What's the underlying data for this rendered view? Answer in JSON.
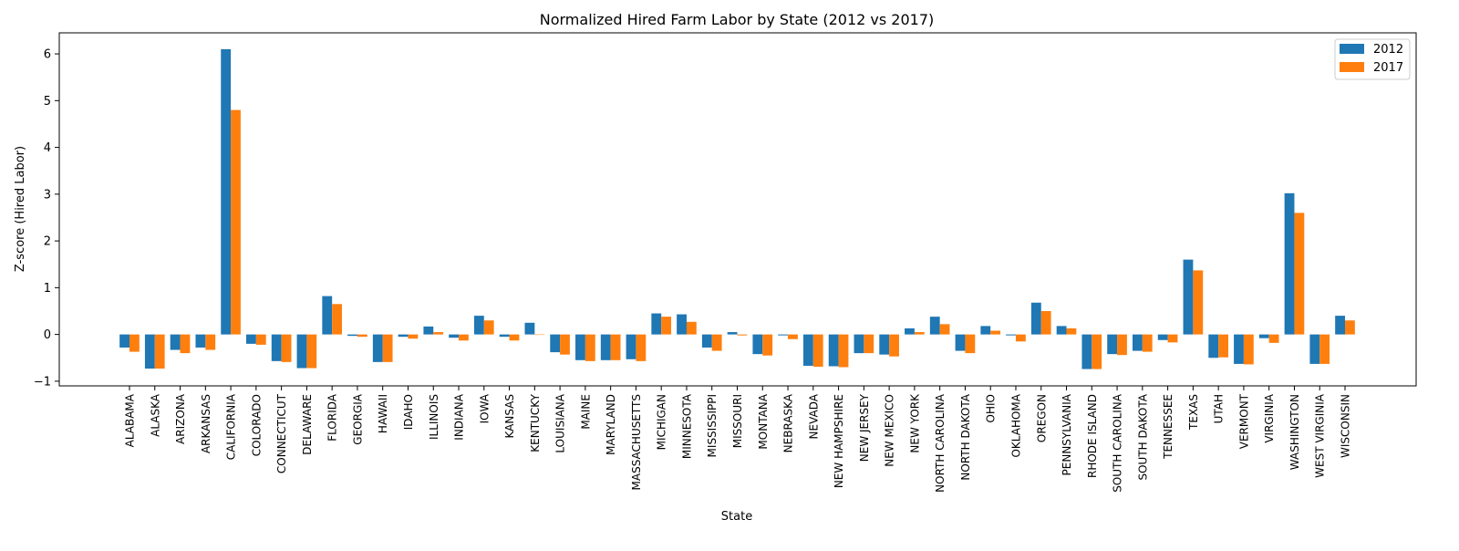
{
  "chart_data": {
    "type": "bar",
    "title": "Normalized Hired Farm Labor by State (2012 vs 2017)",
    "xlabel": "State",
    "ylabel": "Z-score (Hired Labor)",
    "ylim": [
      -1.1,
      6.45
    ],
    "yticks": [
      -1,
      0,
      1,
      2,
      3,
      4,
      5,
      6
    ],
    "grid": false,
    "legend_position": "top-right",
    "categories": [
      "ALABAMA",
      "ALASKA",
      "ARIZONA",
      "ARKANSAS",
      "CALIFORNIA",
      "COLORADO",
      "CONNECTICUT",
      "DELAWARE",
      "FLORIDA",
      "GEORGIA",
      "HAWAII",
      "IDAHO",
      "ILLINOIS",
      "INDIANA",
      "IOWA",
      "KANSAS",
      "KENTUCKY",
      "LOUISIANA",
      "MAINE",
      "MARYLAND",
      "MASSACHUSETTS",
      "MICHIGAN",
      "MINNESOTA",
      "MISSISSIPPI",
      "MISSOURI",
      "MONTANA",
      "NEBRASKA",
      "NEVADA",
      "NEW HAMPSHIRE",
      "NEW JERSEY",
      "NEW MEXICO",
      "NEW YORK",
      "NORTH CAROLINA",
      "NORTH DAKOTA",
      "OHIO",
      "OKLAHOMA",
      "OREGON",
      "PENNSYLVANIA",
      "RHODE ISLAND",
      "SOUTH CAROLINA",
      "SOUTH DAKOTA",
      "TENNESSEE",
      "TEXAS",
      "UTAH",
      "VERMONT",
      "VIRGINIA",
      "WASHINGTON",
      "WEST VIRGINIA",
      "WISCONSIN"
    ],
    "series": [
      {
        "name": "2012",
        "color": "#1f77b4",
        "values": [
          -0.28,
          -0.73,
          -0.33,
          -0.28,
          6.1,
          -0.2,
          -0.57,
          -0.72,
          0.82,
          -0.03,
          -0.59,
          -0.05,
          0.17,
          -0.07,
          0.4,
          -0.05,
          0.25,
          -0.38,
          -0.55,
          -0.55,
          -0.53,
          0.45,
          0.43,
          -0.28,
          0.05,
          -0.42,
          -0.02,
          -0.67,
          -0.68,
          -0.4,
          -0.43,
          0.13,
          0.38,
          -0.35,
          0.18,
          -0.02,
          0.68,
          0.18,
          -0.74,
          -0.42,
          -0.35,
          -0.12,
          1.6,
          -0.5,
          -0.63,
          -0.08,
          3.02,
          -0.63,
          0.4
        ]
      },
      {
        "name": "2017",
        "color": "#ff7f0e",
        "values": [
          -0.37,
          -0.73,
          -0.4,
          -0.33,
          4.8,
          -0.22,
          -0.59,
          -0.72,
          0.65,
          -0.05,
          -0.59,
          -0.09,
          0.05,
          -0.13,
          0.3,
          -0.13,
          0.0,
          -0.43,
          -0.57,
          -0.55,
          -0.57,
          0.38,
          0.27,
          -0.35,
          -0.02,
          -0.45,
          -0.1,
          -0.69,
          -0.7,
          -0.4,
          -0.47,
          0.05,
          0.22,
          -0.4,
          0.08,
          -0.15,
          0.5,
          0.13,
          -0.74,
          -0.44,
          -0.37,
          -0.17,
          1.37,
          -0.49,
          -0.64,
          -0.18,
          2.6,
          -0.63,
          0.3
        ]
      }
    ]
  }
}
